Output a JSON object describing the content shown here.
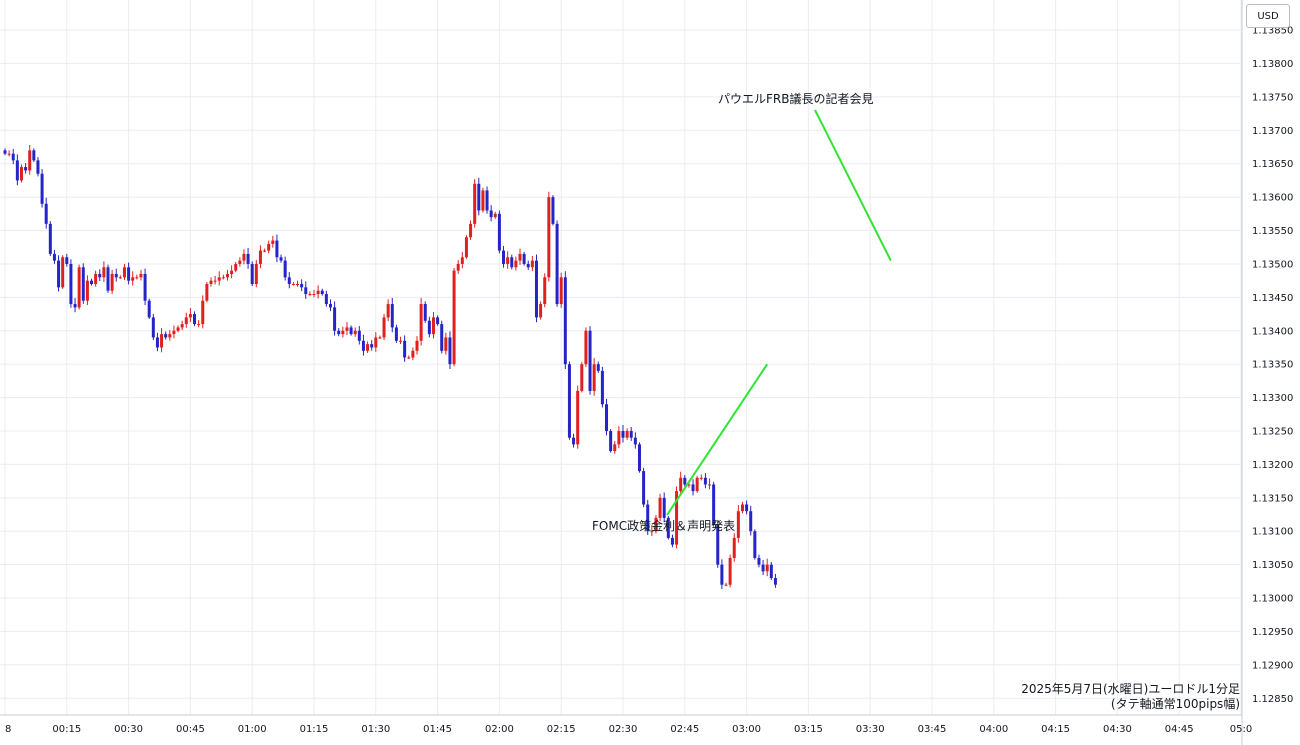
{
  "price_scale": {
    "currency": "USD"
  },
  "chart_data": {
    "type": "candlestick",
    "title": "2025年5月7日(水曜日)ユーロドル1分足",
    "subtitle": "(タテ軸通常100pips幅)",
    "ylim": [
      1.12825,
      1.13895
    ],
    "y_ticks": [
      "1.13850",
      "1.13800",
      "1.13750",
      "1.13700",
      "1.13650",
      "1.13600",
      "1.13550",
      "1.13500",
      "1.13450",
      "1.13400",
      "1.13350",
      "1.13300",
      "1.13250",
      "1.13200",
      "1.13150",
      "1.13100",
      "1.13050",
      "1.13000",
      "1.12950",
      "1.12900",
      "1.12850"
    ],
    "x_ticks": [
      "8",
      "00:15",
      "00:30",
      "00:45",
      "01:00",
      "01:15",
      "01:30",
      "01:45",
      "02:00",
      "02:15",
      "02:30",
      "02:45",
      "03:00",
      "03:15",
      "03:30",
      "03:45",
      "04:00",
      "04:15",
      "04:30",
      "04:45",
      "05:0"
    ],
    "colors": {
      "up": "#e0201e",
      "down": "#2424c8",
      "annotation_line": "#33e333"
    },
    "annotations": [
      {
        "text": "FOMC政策金利＆声明発表",
        "time_offset_min": 185,
        "price": 1.1335
      },
      {
        "text": "パウエルFRB議長の記者会見",
        "time_offset_min": 215,
        "price": 1.13505
      }
    ],
    "closes": [
      1.13665,
      1.13665,
      1.13655,
      1.13625,
      1.13645,
      1.1364,
      1.1367,
      1.13655,
      1.13635,
      1.1359,
      1.1356,
      1.13515,
      1.13505,
      1.13465,
      1.1351,
      1.135,
      1.1344,
      1.13435,
      1.13495,
      1.13445,
      1.13475,
      1.1347,
      1.13485,
      1.1348,
      1.13495,
      1.1346,
      1.13485,
      1.1348,
      1.1348,
      1.13495,
      1.13475,
      1.1348,
      1.1348,
      1.13485,
      1.13445,
      1.1342,
      1.1339,
      1.13375,
      1.13395,
      1.1339,
      1.13395,
      1.134,
      1.13405,
      1.1341,
      1.1342,
      1.13425,
      1.1341,
      1.1341,
      1.13445,
      1.1347,
      1.13475,
      1.13475,
      1.1348,
      1.1348,
      1.13485,
      1.1349,
      1.135,
      1.13505,
      1.13515,
      1.135,
      1.1347,
      1.135,
      1.1352,
      1.1352,
      1.1353,
      1.13535,
      1.1351,
      1.13505,
      1.1348,
      1.1347,
      1.1347,
      1.1347,
      1.13465,
      1.13455,
      1.13455,
      1.13455,
      1.1346,
      1.13455,
      1.1344,
      1.13435,
      1.134,
      1.13395,
      1.134,
      1.13405,
      1.13395,
      1.134,
      1.13385,
      1.1337,
      1.1338,
      1.13375,
      1.1339,
      1.1339,
      1.1342,
      1.1344,
      1.13405,
      1.13385,
      1.13385,
      1.1336,
      1.1336,
      1.1337,
      1.13385,
      1.1344,
      1.13415,
      1.13395,
      1.1342,
      1.1341,
      1.1337,
      1.1339,
      1.1335,
      1.1349,
      1.135,
      1.1351,
      1.1354,
      1.1356,
      1.1362,
      1.1358,
      1.1361,
      1.1358,
      1.1357,
      1.13575,
      1.1352,
      1.135,
      1.1351,
      1.13495,
      1.13505,
      1.13515,
      1.135,
      1.13495,
      1.13505,
      1.1342,
      1.1344,
      1.1348,
      1.136,
      1.1356,
      1.1344,
      1.1348,
      1.1335,
      1.1324,
      1.1323,
      1.1331,
      1.1335,
      1.134,
      1.1331,
      1.1335,
      1.1334,
      1.1329,
      1.1325,
      1.1322,
      1.1323,
      1.1325,
      1.1324,
      1.1325,
      1.1324,
      1.1323,
      1.1319,
      1.1314,
      1.131,
      1.131,
      1.1312,
      1.1315,
      1.1312,
      1.1309,
      1.1308,
      1.1316,
      1.1318,
      1.1317,
      1.1317,
      1.1316,
      1.1318,
      1.1318,
      1.1317,
      1.1317,
      1.1311,
      1.1305,
      1.1302,
      1.1302,
      1.1306,
      1.1309,
      1.1313,
      1.1314,
      1.1313,
      1.131,
      1.1306,
      1.1305,
      1.1304,
      1.1305,
      1.1303,
      1.1302
    ]
  }
}
